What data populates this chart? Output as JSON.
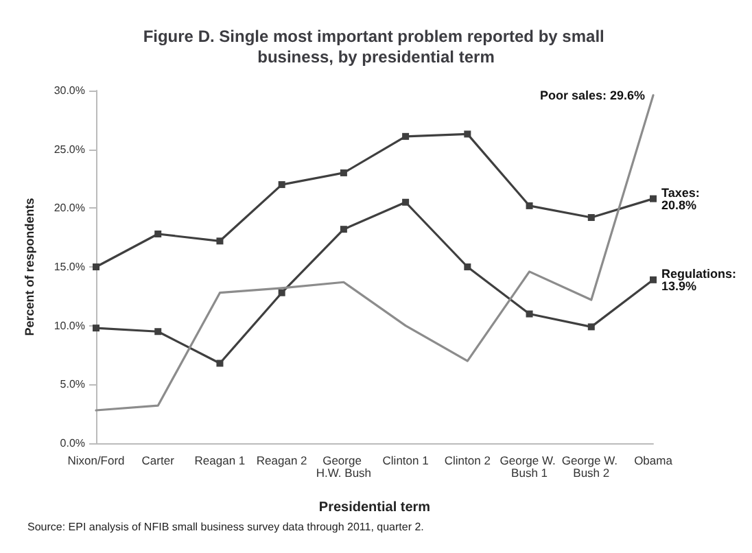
{
  "chart_data": {
    "type": "line",
    "title": "Figure D. Single most important problem reported by small business, by presidential term",
    "xlabel": "Presidential term",
    "ylabel": "Percent of respondents",
    "categories": [
      "Nixon/Ford",
      "Carter",
      "Reagan 1",
      "Reagan 2",
      "George H.W. Bush",
      "Clinton 1",
      "Clinton 2",
      "George W. Bush 1",
      "George W. Bush 2",
      "Obama"
    ],
    "series": [
      {
        "color": "#3f3f3f",
        "marker": "square",
        "values": [
          15.0,
          17.8,
          17.2,
          22.0,
          23.0,
          26.1,
          26.3,
          20.2,
          19.2,
          20.8
        ]
      },
      {
        "color": "#3f3f3f",
        "marker": "square",
        "values": [
          9.8,
          9.5,
          6.8,
          12.8,
          18.2,
          20.5,
          15.0,
          11.0,
          9.9,
          13.9
        ]
      },
      {
        "color": "#8c8c8c",
        "marker": "none",
        "values": [
          2.8,
          3.2,
          12.8,
          13.2,
          13.7,
          10.0,
          7.0,
          14.6,
          12.2,
          29.6
        ]
      }
    ],
    "ylim": [
      0,
      30
    ],
    "yticks": [
      {
        "value": 0,
        "label": "0.0%"
      },
      {
        "value": 5,
        "label": "5.0%"
      },
      {
        "value": 10,
        "label": "10.0%"
      },
      {
        "value": 15,
        "label": "15.0%"
      },
      {
        "value": 20,
        "label": "20.0%"
      },
      {
        "value": 25,
        "label": "25.0%"
      },
      {
        "value": 30,
        "label": "30.0%"
      }
    ],
    "grid": false,
    "annotations": [
      {
        "text": "Poor sales: 29.6%",
        "x": "Obama",
        "y": 29.6
      },
      {
        "text": "Taxes:\n20.8%",
        "x": "Obama",
        "y": 20.8
      },
      {
        "text": "Regulations:\n13.9%",
        "x": "Obama",
        "y": 13.9
      },
      "Source: EPI analysis of NFIB small business survey data through 2011, quarter 2."
    ]
  }
}
